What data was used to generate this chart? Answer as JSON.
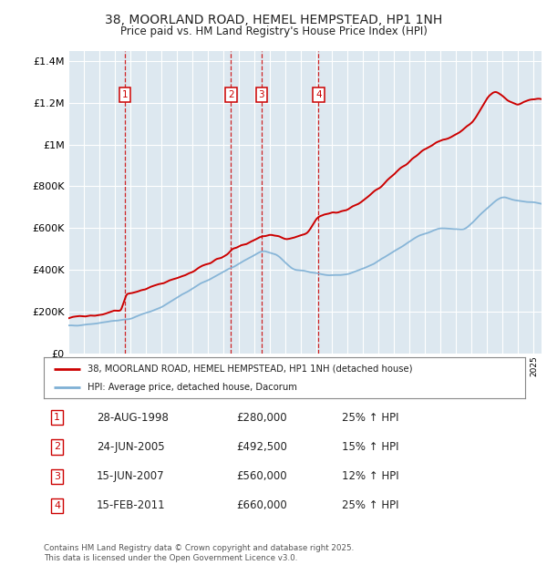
{
  "title": "38, MOORLAND ROAD, HEMEL HEMPSTEAD, HP1 1NH",
  "subtitle": "Price paid vs. HM Land Registry's House Price Index (HPI)",
  "background_color": "#ffffff",
  "plot_bg_color": "#dde8f0",
  "grid_color": "#ffffff",
  "ylim": [
    0,
    1450000
  ],
  "yticks": [
    0,
    200000,
    400000,
    600000,
    800000,
    1000000,
    1200000,
    1400000
  ],
  "ytick_labels": [
    "£0",
    "£200K",
    "£400K",
    "£600K",
    "£800K",
    "£1M",
    "£1.2M",
    "£1.4M"
  ],
  "xmin": 1995.0,
  "xmax": 2025.5,
  "transactions": [
    {
      "num": 1,
      "year": 1998.65,
      "price": 280000,
      "date": "28-AUG-1998",
      "hpi_pct": "25%"
    },
    {
      "num": 2,
      "year": 2005.48,
      "price": 492500,
      "date": "24-JUN-2005",
      "hpi_pct": "15%"
    },
    {
      "num": 3,
      "year": 2007.45,
      "price": 560000,
      "date": "15-JUN-2007",
      "hpi_pct": "12%"
    },
    {
      "num": 4,
      "year": 2011.12,
      "price": 660000,
      "date": "15-FEB-2011",
      "hpi_pct": "25%"
    }
  ],
  "legend_label_red": "38, MOORLAND ROAD, HEMEL HEMPSTEAD, HP1 1NH (detached house)",
  "legend_label_blue": "HPI: Average price, detached house, Dacorum",
  "footer": "Contains HM Land Registry data © Crown copyright and database right 2025.\nThis data is licensed under the Open Government Licence v3.0.",
  "red_color": "#cc0000",
  "blue_color": "#7eb0d5",
  "marker_box_color": "#cc0000",
  "dashed_line_color": "#cc0000",
  "title_fontsize": 10.0,
  "subtitle_fontsize": 8.5
}
